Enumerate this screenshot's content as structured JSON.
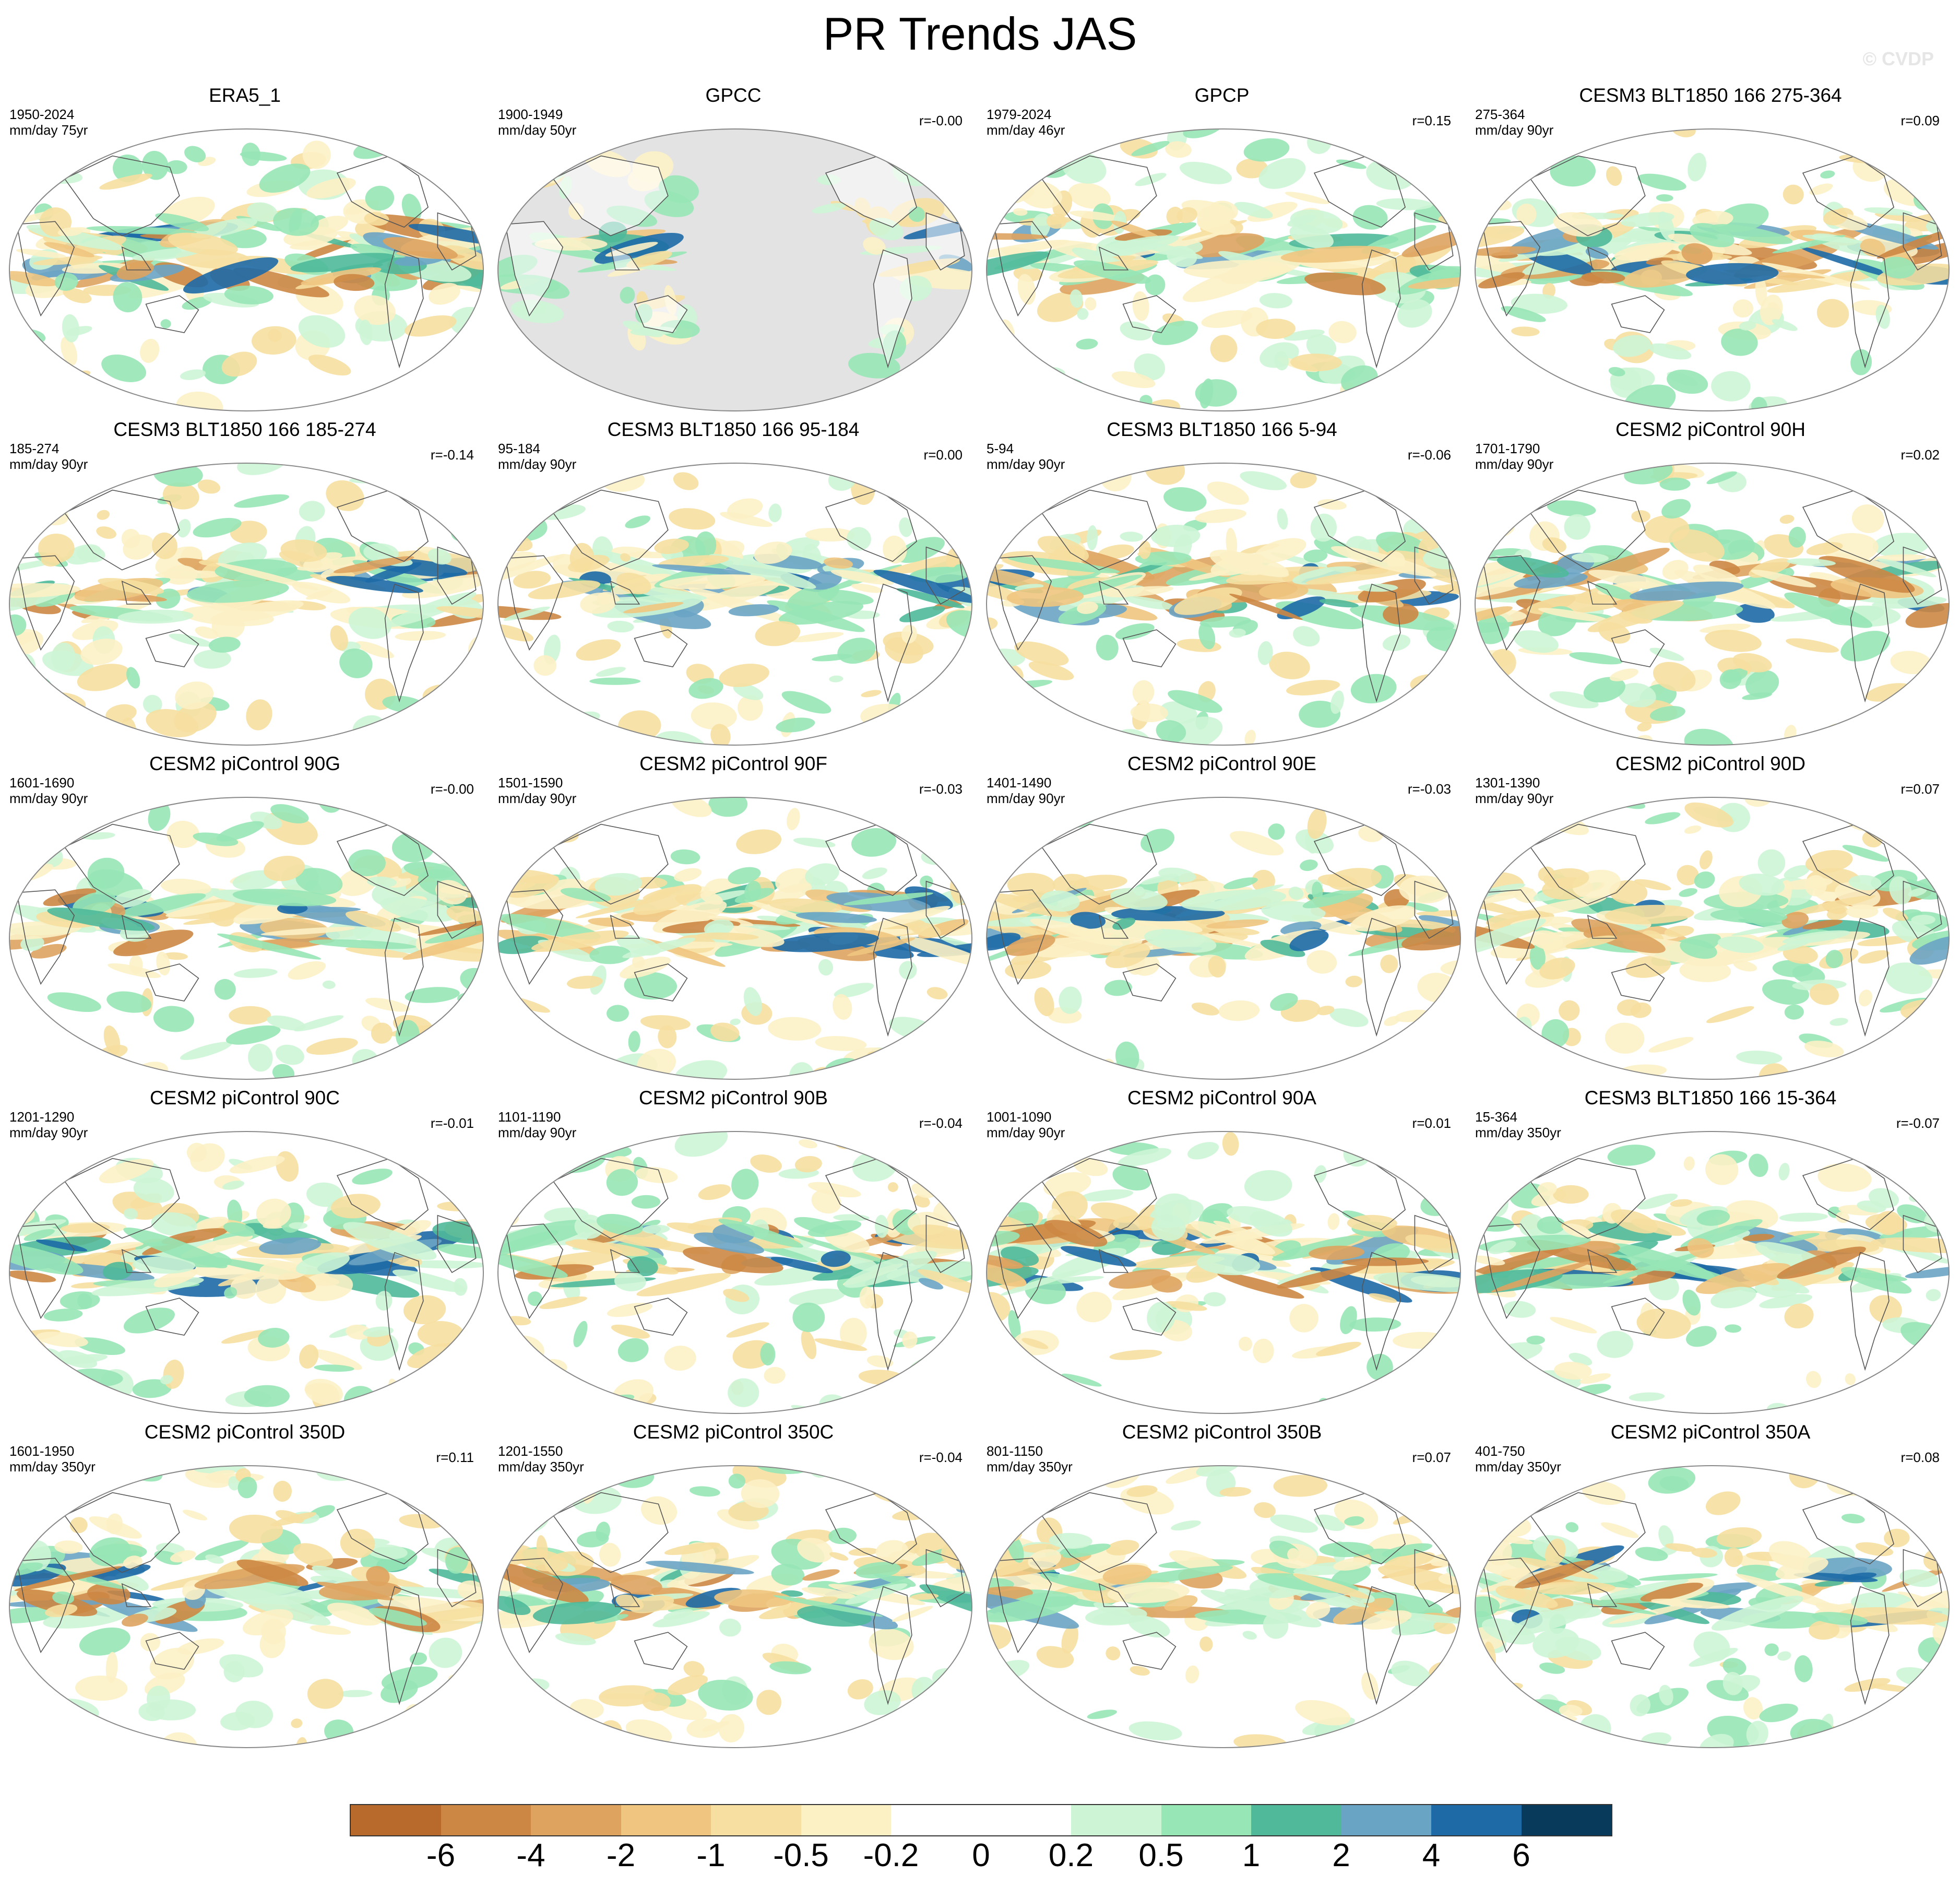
{
  "title": "PR Trends JAS",
  "watermark": "© CVDP",
  "panels": [
    {
      "title": "ERA5_1",
      "period": "1950-2024",
      "units": "mm/day 75yr",
      "r": "",
      "land_only": false
    },
    {
      "title": "GPCC",
      "period": "1900-1949",
      "units": "mm/day 50yr",
      "r": "r=-0.00",
      "land_only": true
    },
    {
      "title": "GPCP",
      "period": "1979-2024",
      "units": "mm/day 46yr",
      "r": "r=0.15",
      "land_only": false
    },
    {
      "title": "CESM3 BLT1850 166 275-364",
      "period": "275-364",
      "units": "mm/day 90yr",
      "r": "r=0.09",
      "land_only": false
    },
    {
      "title": "CESM3 BLT1850 166 185-274",
      "period": "185-274",
      "units": "mm/day 90yr",
      "r": "r=-0.14",
      "land_only": false
    },
    {
      "title": "CESM3 BLT1850 166 95-184",
      "period": "95-184",
      "units": "mm/day 90yr",
      "r": "r=0.00",
      "land_only": false
    },
    {
      "title": "CESM3 BLT1850 166 5-94",
      "period": "5-94",
      "units": "mm/day 90yr",
      "r": "r=-0.06",
      "land_only": false
    },
    {
      "title": "CESM2 piControl 90H",
      "period": "1701-1790",
      "units": "mm/day 90yr",
      "r": "r=0.02",
      "land_only": false
    },
    {
      "title": "CESM2 piControl 90G",
      "period": "1601-1690",
      "units": "mm/day 90yr",
      "r": "r=-0.00",
      "land_only": false
    },
    {
      "title": "CESM2 piControl 90F",
      "period": "1501-1590",
      "units": "mm/day 90yr",
      "r": "r=-0.03",
      "land_only": false
    },
    {
      "title": "CESM2 piControl 90E",
      "period": "1401-1490",
      "units": "mm/day 90yr",
      "r": "r=-0.03",
      "land_only": false
    },
    {
      "title": "CESM2 piControl 90D",
      "period": "1301-1390",
      "units": "mm/day 90yr",
      "r": "r=0.07",
      "land_only": false
    },
    {
      "title": "CESM2 piControl 90C",
      "period": "1201-1290",
      "units": "mm/day 90yr",
      "r": "r=-0.01",
      "land_only": false
    },
    {
      "title": "CESM2 piControl 90B",
      "period": "1101-1190",
      "units": "mm/day 90yr",
      "r": "r=-0.04",
      "land_only": false
    },
    {
      "title": "CESM2 piControl 90A",
      "period": "1001-1090",
      "units": "mm/day 90yr",
      "r": "r=0.01",
      "land_only": false
    },
    {
      "title": "CESM3 BLT1850 166 15-364",
      "period": "15-364",
      "units": "mm/day 350yr",
      "r": "r=-0.07",
      "land_only": false
    },
    {
      "title": "CESM2 piControl 350D",
      "period": "1601-1950",
      "units": "mm/day 350yr",
      "r": "r=0.11",
      "land_only": false
    },
    {
      "title": "CESM2 piControl 350C",
      "period": "1201-1550",
      "units": "mm/day 350yr",
      "r": "r=-0.04",
      "land_only": false
    },
    {
      "title": "CESM2 piControl 350B",
      "period": "801-1150",
      "units": "mm/day 350yr",
      "r": "r=0.07",
      "land_only": false
    },
    {
      "title": "CESM2 piControl 350A",
      "period": "401-750",
      "units": "mm/day 350yr",
      "r": "r=0.08",
      "land_only": false
    }
  ],
  "colorbar": {
    "colors": [
      "#b86a2c",
      "#cc8744",
      "#dea35f",
      "#f0c57f",
      "#f6dfa0",
      "#fcf1c5",
      "#ffffff",
      "#ffffff",
      "#cdf5d5",
      "#97e6b6",
      "#4fb99a",
      "#6aa4c4",
      "#1d6aa6",
      "#083a5c"
    ],
    "labels": [
      "-6",
      "-4",
      "-2",
      "-1",
      "-0.5",
      "-0.2",
      "0",
      "0.2",
      "0.5",
      "1",
      "2",
      "4",
      "6"
    ]
  }
}
